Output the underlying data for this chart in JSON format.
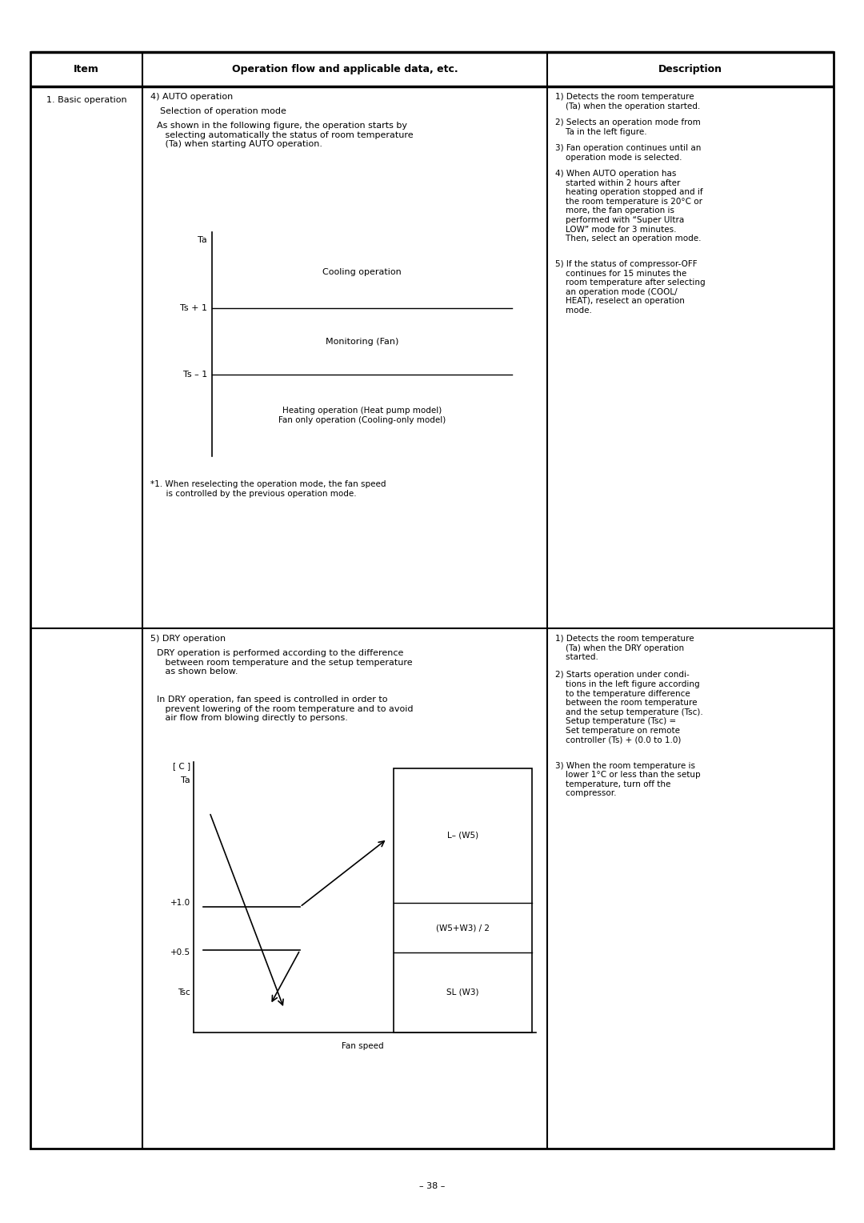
{
  "page_number": "– 38 –",
  "header": {
    "col1": "Item",
    "col2": "Operation flow and applicable data, etc.",
    "col3": "Description"
  },
  "row1": {
    "item": "1. Basic operation",
    "section4_title": "4) AUTO operation",
    "section4_subtitle": "   Selection of operation mode",
    "section4_text1": "   As shown in the following figure, the operation starts by\n   selecting automatically the status of room temperature\n   (Ta) when starting AUTO operation.",
    "footnote": "*1. When reselecting the operation mode, the fan speed\n      is controlled by the previous operation mode.",
    "desc1": "1) Detects the room temperature\n    (Ta) when the operation started.",
    "desc2": "2) Selects an operation mode from\n    Ta in the left figure.",
    "desc3": "3) Fan operation continues until an\n    operation mode is selected.",
    "desc4": "4) When AUTO operation has\n    started within 2 hours after\n    heating operation stopped and if\n    the room temperature is 20°C or\n    more, the fan operation is\n    performed with “Super Ultra\n    LOW” mode for 3 minutes.\n    Then, select an operation mode.",
    "desc5": "5) If the status of compressor-OFF\n    continues for 15 minutes the\n    room temperature after selecting\n    an operation mode (COOL/\n    HEAT), reselect an operation\n    mode."
  },
  "row2": {
    "section5_title": "5) DRY operation",
    "section5_text1": "   DRY operation is performed according to the difference\n   between room temperature and the setup temperature\n   as shown below.",
    "section5_text2": "   In DRY operation, fan speed is controlled in order to\n   prevent lowering of the room temperature and to avoid\n   air flow from blowing directly to persons.",
    "desc2_1": "1) Detects the room temperature\n    (Ta) when the DRY operation\n    started.",
    "desc2_2": "2) Starts operation under condi-\n    tions in the left figure according\n    to the temperature difference\n    between the room temperature\n    and the setup temperature (Tsc).\n    Setup temperature (Tsc) =\n    Set temperature on remote\n    controller (Ts) + (0.0 to 1.0)",
    "desc2_3": "3) When the room temperature is\n    lower 1°C or less than the setup\n    temperature, turn off the\n    compressor."
  }
}
